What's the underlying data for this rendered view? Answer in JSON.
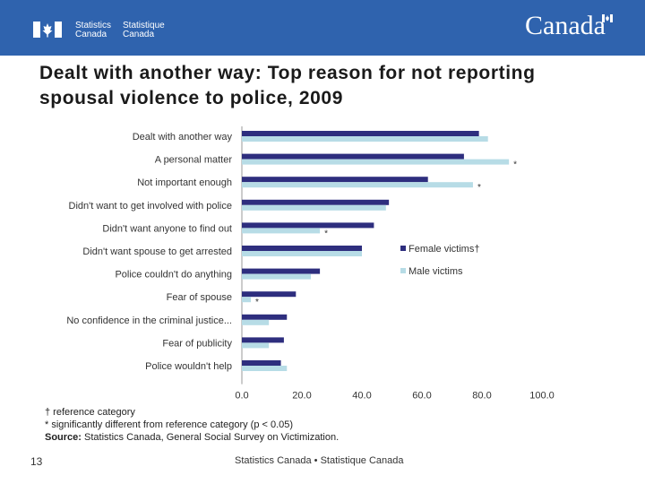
{
  "header": {
    "statistics_line1": "Statistics",
    "statistics_line2": "Canada",
    "statistique_line1": "Statistique",
    "statistique_line2": "Canada",
    "wordmark": "Canad",
    "wordmark_last": "a",
    "bg_color": "#2f63ae"
  },
  "title": "Dealt with another way: Top reason for not reporting spousal violence to police, 2009",
  "chart_data": {
    "type": "bar",
    "orientation": "horizontal",
    "categories": [
      "Dealt with another way",
      "A personal matter",
      "Not important enough",
      "Didn't want to get involved with police",
      "Didn't want anyone to find out",
      "Didn't want spouse to get arrested",
      "Police couldn't do anything",
      "Fear of spouse",
      "No confidence in the criminal justice...",
      "Fear of publicity",
      "Police wouldn't help"
    ],
    "series": [
      {
        "name": "Female victims†",
        "color": "#2e2e7e",
        "values": [
          79,
          74,
          62,
          49,
          44,
          40,
          26,
          18,
          15,
          14,
          13
        ]
      },
      {
        "name": "Male victims",
        "color": "#b7dce6",
        "values": [
          82,
          89,
          77,
          48,
          26,
          40,
          23,
          3,
          9,
          9,
          15
        ]
      }
    ],
    "significance_markers": [
      "",
      "*",
      "*",
      "",
      "*",
      "",
      "",
      "*",
      "",
      "",
      ""
    ],
    "marker_symbol": "*",
    "xlim": [
      0,
      100
    ],
    "xticks": [
      "0.0",
      "20.0",
      "40.0",
      "60.0",
      "80.0",
      "100.0"
    ],
    "xlabel": "",
    "ylabel": "",
    "legend_position": "right"
  },
  "notes": {
    "reference": "† reference category",
    "significance": "* significantly different from reference category (p < 0.05)",
    "source_label": "Source:",
    "source_text": " Statistics Canada, General Social Survey on Victimization."
  },
  "footer": {
    "page_number": "13",
    "text": "Statistics Canada • Statistique Canada"
  }
}
